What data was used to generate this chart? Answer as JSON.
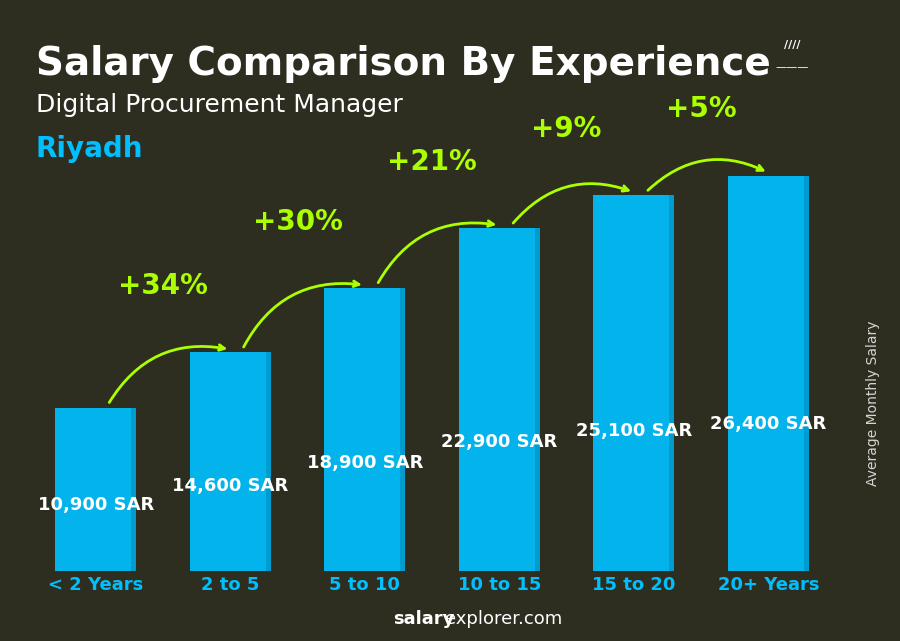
{
  "title": "Salary Comparison By Experience",
  "subtitle": "Digital Procurement Manager",
  "city": "Riyadh",
  "categories": [
    "< 2 Years",
    "2 to 5",
    "5 to 10",
    "10 to 15",
    "15 to 20",
    "20+ Years"
  ],
  "values": [
    10900,
    14600,
    18900,
    22900,
    25100,
    26400
  ],
  "salary_labels": [
    "10,900 SAR",
    "14,600 SAR",
    "18,900 SAR",
    "22,900 SAR",
    "25,100 SAR",
    "26,400 SAR"
  ],
  "pct_changes": [
    "+34%",
    "+30%",
    "+21%",
    "+9%",
    "+5%"
  ],
  "bar_color": "#00BFFF",
  "bar_color_dark": "#0099CC",
  "pct_color": "#AAFF00",
  "title_color": "#FFFFFF",
  "subtitle_color": "#FFFFFF",
  "city_color": "#00BFFF",
  "tick_color": "#00BFFF",
  "ylabel": "Average Monthly Salary",
  "footer": "salaryexplorer.com",
  "bg_color": "#3a3a2a",
  "ylim": [
    0,
    32000
  ],
  "title_fontsize": 28,
  "subtitle_fontsize": 18,
  "city_fontsize": 20,
  "label_fontsize": 13,
  "pct_fontsize": 20,
  "tick_fontsize": 13,
  "footer_fontsize": 13
}
